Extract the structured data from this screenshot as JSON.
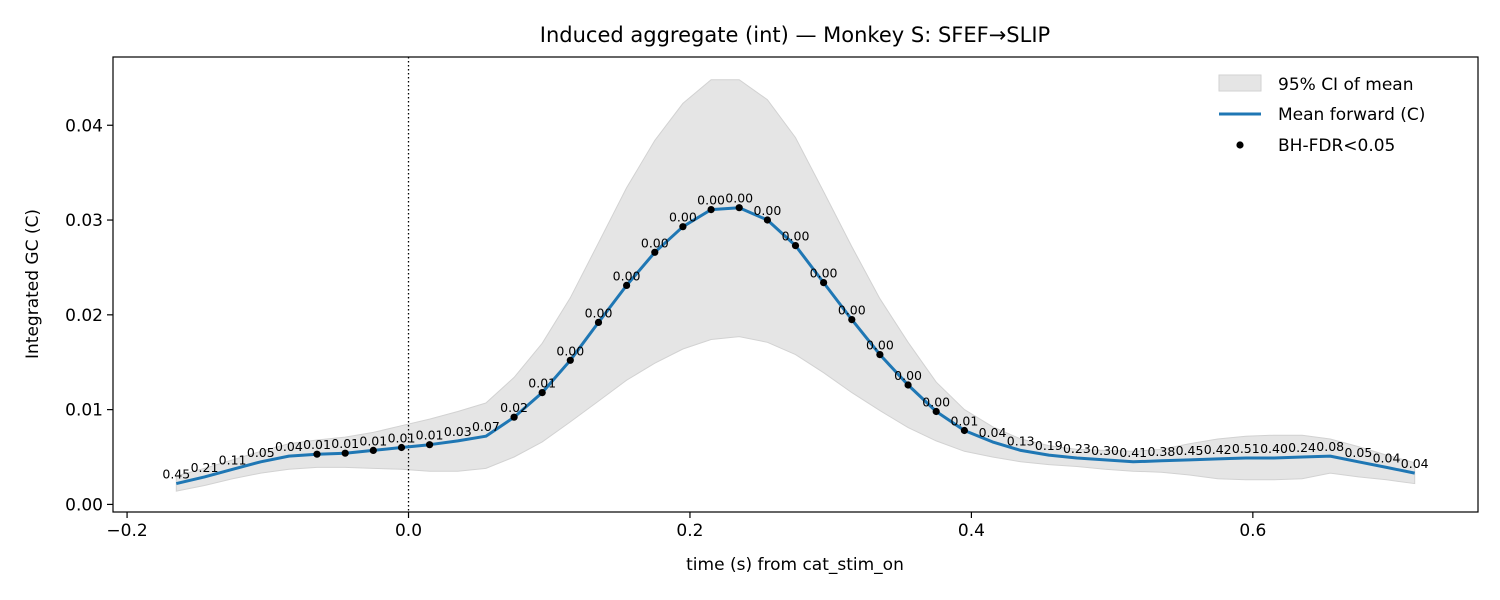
{
  "chart_data": {
    "type": "line",
    "title": "Induced aggregate (int) — Monkey S: SFEF→SLIP",
    "xlabel": "time (s) from cat_stim_on",
    "ylabel": "Integrated GC (C)",
    "xlim": [
      -0.21,
      0.76
    ],
    "ylim": [
      -0.0008,
      0.0472
    ],
    "x_ticks": [
      -0.2,
      0.0,
      0.2,
      0.4,
      0.6
    ],
    "x_tick_labels": [
      "−0.2",
      "0.0",
      "0.2",
      "0.4",
      "0.6"
    ],
    "y_ticks": [
      0.0,
      0.01,
      0.02,
      0.03,
      0.04
    ],
    "y_tick_labels": [
      "0.00",
      "0.01",
      "0.02",
      "0.03",
      "0.04"
    ],
    "grid": false,
    "legend_placement": "top-right",
    "event_line": {
      "x": 0.0,
      "style": "dotted"
    },
    "colors": {
      "mean_line": "#1f77b4",
      "ci_fill": "#e5e5e5",
      "ci_edge": "#d2d2d2",
      "sig_marker": "#000000"
    },
    "legend": [
      {
        "label": "95% CI of mean",
        "kind": "patch"
      },
      {
        "label": "Mean forward (C)",
        "kind": "line"
      },
      {
        "label": "BH-FDR<0.05",
        "kind": "marker"
      }
    ],
    "x": [
      -0.165,
      -0.145,
      -0.125,
      -0.105,
      -0.085,
      -0.065,
      -0.045,
      -0.025,
      -0.005,
      0.015,
      0.035,
      0.055,
      0.075,
      0.095,
      0.115,
      0.135,
      0.155,
      0.175,
      0.195,
      0.215,
      0.235,
      0.255,
      0.275,
      0.295,
      0.315,
      0.335,
      0.355,
      0.375,
      0.395,
      0.415,
      0.435,
      0.455,
      0.475,
      0.495,
      0.515,
      0.535,
      0.555,
      0.575,
      0.595,
      0.615,
      0.635,
      0.655,
      0.675,
      0.695,
      0.715
    ],
    "series": [
      {
        "name": "Mean forward (C)",
        "values": [
          0.0022,
          0.0029,
          0.0037,
          0.0045,
          0.0051,
          0.0053,
          0.0054,
          0.0057,
          0.006,
          0.0063,
          0.0067,
          0.0072,
          0.0092,
          0.0118,
          0.0152,
          0.0192,
          0.0231,
          0.0266,
          0.0293,
          0.0311,
          0.0313,
          0.03,
          0.0273,
          0.0234,
          0.0195,
          0.0158,
          0.0126,
          0.0098,
          0.0078,
          0.0066,
          0.0057,
          0.0052,
          0.0049,
          0.0047,
          0.0045,
          0.0046,
          0.0047,
          0.0048,
          0.0049,
          0.0049,
          0.005,
          0.0051,
          0.0045,
          0.0039,
          0.0033
        ]
      }
    ],
    "ci_lower": [
      0.0014,
      0.002,
      0.0027,
      0.0033,
      0.0037,
      0.0039,
      0.0039,
      0.0038,
      0.0037,
      0.0035,
      0.0035,
      0.0038,
      0.005,
      0.0066,
      0.0087,
      0.0109,
      0.0131,
      0.0149,
      0.0164,
      0.0174,
      0.0177,
      0.0171,
      0.0158,
      0.0139,
      0.0118,
      0.0099,
      0.0081,
      0.0067,
      0.0056,
      0.005,
      0.0045,
      0.0042,
      0.004,
      0.0037,
      0.0035,
      0.0034,
      0.0031,
      0.0027,
      0.0026,
      0.0026,
      0.0027,
      0.0033,
      0.0029,
      0.0026,
      0.0022
    ],
    "ci_upper": [
      0.003,
      0.0038,
      0.0047,
      0.0056,
      0.0064,
      0.0068,
      0.0071,
      0.0076,
      0.0083,
      0.009,
      0.0098,
      0.0107,
      0.0134,
      0.017,
      0.0218,
      0.0276,
      0.0334,
      0.0384,
      0.0423,
      0.0448,
      0.0448,
      0.0427,
      0.0387,
      0.033,
      0.0272,
      0.0217,
      0.0171,
      0.0129,
      0.01,
      0.0082,
      0.0069,
      0.0062,
      0.0058,
      0.0057,
      0.0056,
      0.0058,
      0.0064,
      0.0069,
      0.0072,
      0.0073,
      0.0073,
      0.0069,
      0.0061,
      0.0052,
      0.0044
    ],
    "p_values": [
      "0.45",
      "0.21",
      "0.11",
      "0.05",
      "0.04",
      "0.01",
      "0.01",
      "0.01",
      "0.01",
      "0.01",
      "0.03",
      "0.07",
      "0.02",
      "0.01",
      "0.00",
      "0.00",
      "0.00",
      "0.00",
      "0.00",
      "0.00",
      "0.00",
      "0.00",
      "0.00",
      "0.00",
      "0.00",
      "0.00",
      "0.00",
      "0.00",
      "0.01",
      "0.04",
      "0.13",
      "0.19",
      "0.23",
      "0.30",
      "0.41",
      "0.38",
      "0.45",
      "0.42",
      "0.51",
      "0.40",
      "0.24",
      "0.08",
      "0.05",
      "0.04",
      "0.04"
    ],
    "significant": [
      false,
      false,
      false,
      false,
      false,
      true,
      true,
      true,
      true,
      true,
      false,
      false,
      true,
      true,
      true,
      true,
      true,
      true,
      true,
      true,
      true,
      true,
      true,
      true,
      true,
      true,
      true,
      true,
      true,
      false,
      false,
      false,
      false,
      false,
      false,
      false,
      false,
      false,
      false,
      false,
      false,
      false,
      false,
      false,
      false
    ]
  }
}
